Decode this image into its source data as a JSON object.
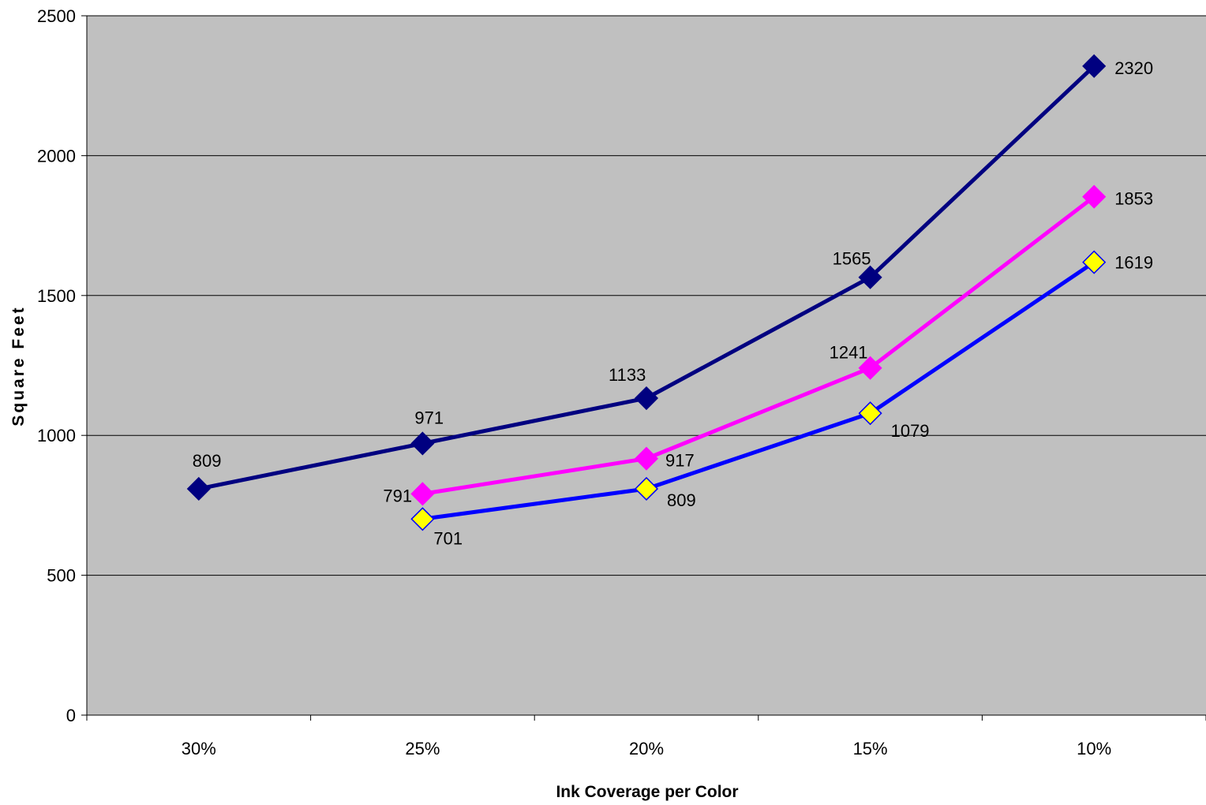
{
  "chart_data": {
    "type": "line",
    "title": "",
    "xlabel": "Ink Coverage per Color",
    "ylabel": "Square Feet",
    "categories": [
      "30%",
      "25%",
      "20%",
      "15%",
      "10%"
    ],
    "yticks": [
      "0",
      "500",
      "1000",
      "1500",
      "2000",
      "2500"
    ],
    "ylim": [
      0,
      2500
    ],
    "grid": true,
    "legend": "none",
    "plot_background": "#C0C0C0",
    "series": [
      {
        "values": [
          809,
          971,
          1133,
          1565,
          2320
        ],
        "labels": [
          "809",
          "971",
          "1133",
          "1565",
          "2320"
        ],
        "color": "#000080",
        "marker_fill": "#000080",
        "marker_stroke": "#000080"
      },
      {
        "values": [
          null,
          791,
          917,
          1241,
          1853
        ],
        "labels": [
          "",
          "791",
          "917",
          "1241",
          "1853"
        ],
        "color": "#FF00FF",
        "marker_fill": "#FF00FF",
        "marker_stroke": "#FF00FF"
      },
      {
        "values": [
          null,
          701,
          809,
          1079,
          1619
        ],
        "labels": [
          "",
          "701",
          "809",
          "1079",
          "1619"
        ],
        "color": "#0000FF",
        "marker_fill": "#FFFF00",
        "marker_stroke": "#0000FF"
      }
    ]
  }
}
